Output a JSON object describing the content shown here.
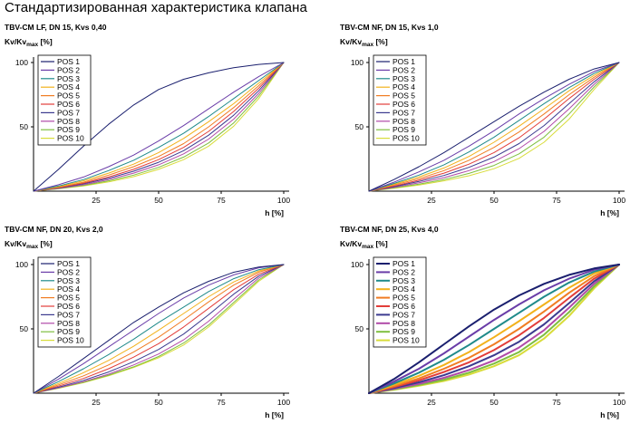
{
  "page_title": "Стандартизированная характеристика клапана",
  "chart_data": [
    {
      "type": "line",
      "title": "TBV-CM LF, DN 15, Kvs 0,40",
      "ylabel_main": "Kv/Kv",
      "ylabel_sub": "max",
      "ylabel_unit": " [%]",
      "xlabel": "h [%]",
      "xlim": [
        0,
        100
      ],
      "ylim": [
        0,
        100
      ],
      "xticks": [
        25,
        50,
        75,
        100
      ],
      "yticks": [
        50,
        100
      ],
      "grid": false,
      "legend": "top-left",
      "line_width": 1,
      "x": [
        0,
        10,
        20,
        30,
        40,
        50,
        60,
        70,
        80,
        90,
        100
      ],
      "series": [
        {
          "name": "POS 1",
          "color": "#1a1f6e",
          "values": [
            0,
            17,
            35,
            52,
            67,
            79,
            87,
            92,
            96,
            98.5,
            100
          ]
        },
        {
          "name": "POS 2",
          "color": "#6a3da8",
          "values": [
            0,
            5,
            11,
            19,
            28,
            39,
            51,
            64,
            77,
            89,
            100
          ]
        },
        {
          "name": "POS 3",
          "color": "#1f8a8a",
          "values": [
            0,
            4,
            9,
            16,
            24,
            34,
            45,
            58,
            72,
            86,
            100
          ]
        },
        {
          "name": "POS 4",
          "color": "#f2b21b",
          "values": [
            0,
            3.5,
            8,
            14,
            21,
            30,
            41,
            54,
            68,
            84,
            100
          ]
        },
        {
          "name": "POS 5",
          "color": "#f07c22",
          "values": [
            0,
            3,
            7,
            12.5,
            19,
            27,
            37,
            50,
            65,
            82,
            100
          ]
        },
        {
          "name": "POS 6",
          "color": "#e23d3a",
          "values": [
            0,
            2.8,
            6.3,
            11,
            17,
            24.5,
            34,
            46.5,
            62,
            80,
            100
          ]
        },
        {
          "name": "POS 7",
          "color": "#3b3a8f",
          "values": [
            0,
            2.5,
            5.7,
            10,
            15.5,
            22.5,
            31.5,
            43.5,
            59,
            78,
            100
          ]
        },
        {
          "name": "POS 8",
          "color": "#b04aa8",
          "values": [
            0,
            2.2,
            5,
            9,
            14,
            20.5,
            29,
            40.5,
            56,
            76,
            100
          ]
        },
        {
          "name": "POS 9",
          "color": "#7fbf3f",
          "values": [
            0,
            2,
            4.5,
            8,
            12.5,
            18.5,
            26.5,
            37.5,
            53,
            74,
            100
          ]
        },
        {
          "name": "POS 10",
          "color": "#d8dc3a",
          "values": [
            0,
            1.8,
            4,
            7.2,
            11.3,
            17,
            24.5,
            35,
            50.5,
            72,
            100
          ]
        }
      ]
    },
    {
      "type": "line",
      "title": "TBV-CM NF, DN 15, Kvs 1,0",
      "ylabel_main": "Kv/Kv",
      "ylabel_sub": "max",
      "ylabel_unit": " [%]",
      "xlabel": "h [%]",
      "xlim": [
        0,
        100
      ],
      "ylim": [
        0,
        100
      ],
      "xticks": [
        25,
        50,
        75,
        100
      ],
      "yticks": [
        50,
        100
      ],
      "grid": false,
      "legend": "top-left",
      "line_width": 1,
      "x": [
        0,
        10,
        20,
        30,
        40,
        50,
        60,
        70,
        80,
        90,
        100
      ],
      "series": [
        {
          "name": "POS 1",
          "color": "#1a1f6e",
          "values": [
            0,
            9,
            19,
            30,
            42,
            54,
            66,
            77,
            87,
            95,
            100
          ]
        },
        {
          "name": "POS 2",
          "color": "#6a3da8",
          "values": [
            0,
            7,
            15,
            24,
            35,
            47,
            60,
            72,
            83,
            93,
            100
          ]
        },
        {
          "name": "POS 3",
          "color": "#1f8a8a",
          "values": [
            0,
            6,
            12.5,
            20.5,
            30.5,
            42,
            55,
            68,
            80.5,
            91.5,
            100
          ]
        },
        {
          "name": "POS 4",
          "color": "#f2b21b",
          "values": [
            0,
            5.3,
            11,
            18,
            27,
            38,
            50.5,
            64,
            78,
            90,
            100
          ]
        },
        {
          "name": "POS 5",
          "color": "#f07c22",
          "values": [
            0,
            4.7,
            9.7,
            16,
            24,
            34,
            46,
            60,
            75,
            88.5,
            100
          ]
        },
        {
          "name": "POS 6",
          "color": "#e23d3a",
          "values": [
            0,
            4,
            8.5,
            14,
            21,
            30,
            41.5,
            56,
            72,
            87,
            100
          ]
        },
        {
          "name": "POS 7",
          "color": "#3b3a8f",
          "values": [
            0,
            3.5,
            7.5,
            12.2,
            18.5,
            26.5,
            37,
            51,
            68,
            85,
            100
          ]
        },
        {
          "name": "POS 8",
          "color": "#b04aa8",
          "values": [
            0,
            3,
            6.5,
            10.5,
            16,
            23,
            33,
            46.5,
            64,
            83,
            100
          ]
        },
        {
          "name": "POS 9",
          "color": "#7fbf3f",
          "values": [
            0,
            2.5,
            5.5,
            9,
            13.8,
            20,
            29,
            42,
            60,
            81,
            100
          ]
        },
        {
          "name": "POS 10",
          "color": "#d8dc3a",
          "values": [
            0,
            2.2,
            4.8,
            8,
            12,
            17.5,
            25.5,
            38,
            56,
            79,
            100
          ]
        }
      ]
    },
    {
      "type": "line",
      "title": "TBV-CM NF, DN 20, Kvs 2,0",
      "ylabel_main": "Kv/Kv",
      "ylabel_sub": "max",
      "ylabel_unit": " [%]",
      "xlabel": "h [%]",
      "xlim": [
        0,
        100
      ],
      "ylim": [
        0,
        100
      ],
      "xticks": [
        25,
        50,
        75,
        100
      ],
      "yticks": [
        50,
        100
      ],
      "grid": false,
      "legend": "top-left",
      "line_width": 1,
      "x": [
        0,
        10,
        20,
        30,
        40,
        50,
        60,
        70,
        80,
        90,
        100
      ],
      "series": [
        {
          "name": "POS 1",
          "color": "#1a1f6e",
          "values": [
            0,
            13,
            27,
            41,
            55,
            67,
            78,
            87,
            94,
            98,
            100
          ]
        },
        {
          "name": "POS 2",
          "color": "#6a3da8",
          "values": [
            0,
            11,
            23,
            36,
            49,
            62,
            74,
            84,
            92,
            97.5,
            100
          ]
        },
        {
          "name": "POS 3",
          "color": "#1f8a8a",
          "values": [
            0,
            9,
            19,
            30,
            42,
            55,
            67,
            79,
            89,
            96,
            100
          ]
        },
        {
          "name": "POS 4",
          "color": "#f2b21b",
          "values": [
            0,
            7.5,
            16,
            25.5,
            36.5,
            49,
            62,
            75,
            86.5,
            95,
            100
          ]
        },
        {
          "name": "POS 5",
          "color": "#f07c22",
          "values": [
            0,
            6.5,
            13.5,
            22,
            32,
            43.5,
            57,
            71,
            84,
            94,
            100
          ]
        },
        {
          "name": "POS 6",
          "color": "#e23d3a",
          "values": [
            0,
            5.5,
            11.5,
            19,
            28,
            38.5,
            51.5,
            66,
            80.5,
            92.5,
            100
          ]
        },
        {
          "name": "POS 7",
          "color": "#3b3a8f",
          "values": [
            0,
            4.7,
            10,
            16.5,
            24.5,
            34,
            46,
            61,
            77,
            91,
            100
          ]
        },
        {
          "name": "POS 8",
          "color": "#b04aa8",
          "values": [
            0,
            4.2,
            9,
            14.8,
            22,
            30.5,
            41.5,
            56,
            73,
            89.5,
            100
          ]
        },
        {
          "name": "POS 9",
          "color": "#7fbf3f",
          "values": [
            0,
            4,
            8.5,
            14,
            20.5,
            28.5,
            39,
            53,
            70.5,
            88,
            100
          ]
        },
        {
          "name": "POS 10",
          "color": "#d8dc3a",
          "values": [
            0,
            3.8,
            8.2,
            13.5,
            20,
            27.5,
            37.5,
            51.5,
            69,
            87,
            100
          ]
        }
      ]
    },
    {
      "type": "line",
      "title": "TBV-CM NF, DN 25, Kvs 4,0",
      "ylabel_main": "Kv/Kv",
      "ylabel_sub": "max",
      "ylabel_unit": " [%]",
      "xlabel": "h [%]",
      "xlim": [
        0,
        100
      ],
      "ylim": [
        0,
        100
      ],
      "xticks": [
        25,
        50,
        75,
        100
      ],
      "yticks": [
        50,
        100
      ],
      "grid": false,
      "legend": "top-left",
      "line_width": 2,
      "x": [
        0,
        10,
        20,
        30,
        40,
        50,
        60,
        70,
        80,
        90,
        100
      ],
      "series": [
        {
          "name": "POS 1",
          "color": "#1a1f6e",
          "values": [
            0,
            11,
            24,
            38,
            52,
            65,
            76,
            85,
            92,
            97,
            100
          ]
        },
        {
          "name": "POS 2",
          "color": "#6a3da8",
          "values": [
            0,
            9,
            19,
            31,
            44,
            57,
            69,
            80,
            89,
            96,
            100
          ]
        },
        {
          "name": "POS 3",
          "color": "#1f8a8a",
          "values": [
            0,
            7.5,
            16,
            26,
            37.5,
            50,
            62.5,
            75,
            86,
            94.5,
            100
          ]
        },
        {
          "name": "POS 4",
          "color": "#f2b21b",
          "values": [
            0,
            6.5,
            13.5,
            22,
            32,
            43.5,
            56,
            69,
            82,
            93,
            100
          ]
        },
        {
          "name": "POS 5",
          "color": "#f07c22",
          "values": [
            0,
            5.5,
            11.5,
            19,
            27.5,
            38,
            50,
            63.5,
            78,
            91,
            100
          ]
        },
        {
          "name": "POS 6",
          "color": "#e23d3a",
          "values": [
            0,
            4.7,
            10,
            16.5,
            24,
            33.5,
            45,
            58.5,
            74,
            89,
            100
          ]
        },
        {
          "name": "POS 7",
          "color": "#3b3a8f",
          "values": [
            0,
            4,
            8.5,
            14,
            21,
            29.5,
            40,
            53.5,
            70,
            87,
            100
          ]
        },
        {
          "name": "POS 8",
          "color": "#b04aa8",
          "values": [
            0,
            3.4,
            7.3,
            12,
            18,
            25.5,
            35.5,
            49,
            66.5,
            85,
            100
          ]
        },
        {
          "name": "POS 9",
          "color": "#7fbf3f",
          "values": [
            0,
            3,
            6.4,
            10.5,
            16,
            23,
            32,
            45.5,
            63,
            83,
            100
          ]
        },
        {
          "name": "POS 10",
          "color": "#d8dc3a",
          "values": [
            0,
            2.7,
            5.8,
            9.5,
            14.5,
            21,
            29.5,
            42.5,
            60,
            81.5,
            100
          ]
        }
      ]
    }
  ]
}
